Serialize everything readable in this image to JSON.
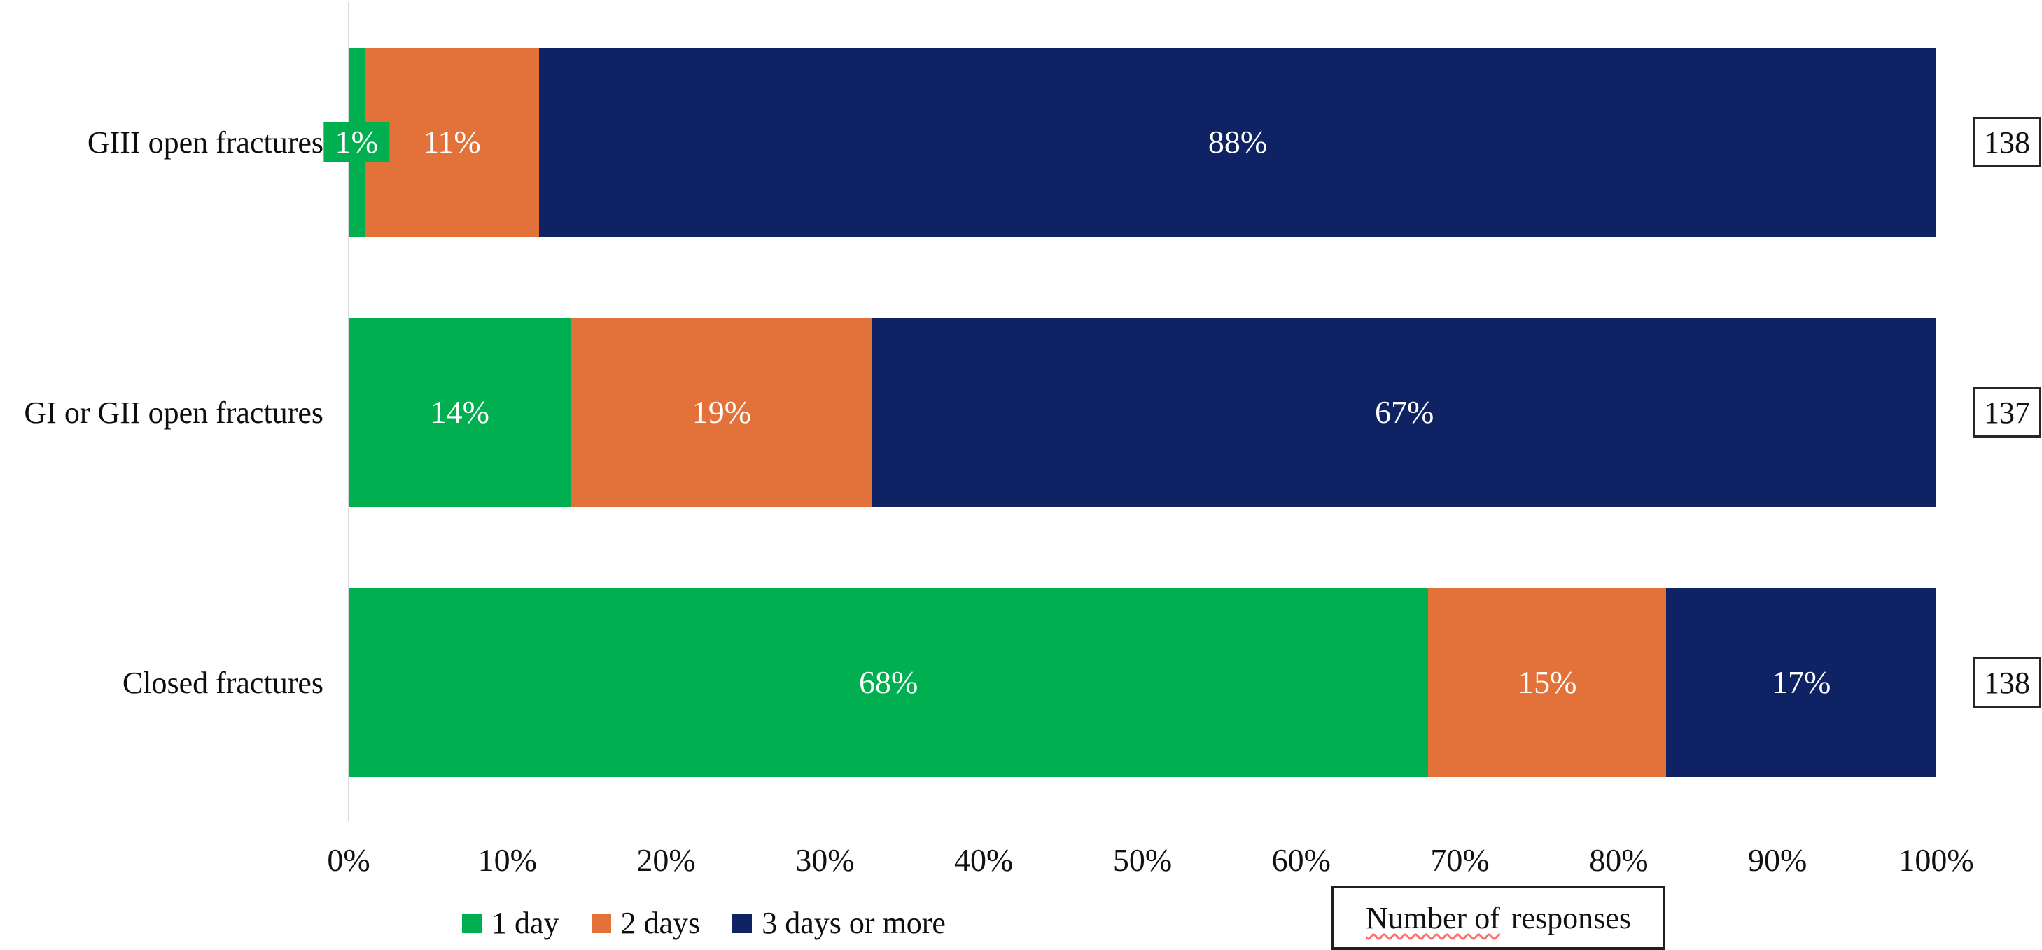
{
  "chart_data": {
    "type": "bar",
    "orientation": "horizontal",
    "stacked": true,
    "unit": "%",
    "categories": [
      "GIII open fractures",
      "GI or GII open fractures",
      "Closed fractures"
    ],
    "series": [
      {
        "name": "1 day",
        "color": "#00B050",
        "values": [
          1,
          14,
          68
        ]
      },
      {
        "name": "2 days",
        "color": "#E2713A",
        "values": [
          11,
          19,
          15
        ]
      },
      {
        "name": "3 days or more",
        "color": "#0F2364",
        "values": [
          88,
          67,
          17
        ]
      }
    ],
    "data_labels": [
      [
        "1%",
        "11%",
        "88%"
      ],
      [
        "14%",
        "19%",
        "67%"
      ],
      [
        "68%",
        "15%",
        "17%"
      ]
    ],
    "bar_totals": [
      "138",
      "137",
      "138"
    ],
    "x_ticks": [
      "0%",
      "10%",
      "20%",
      "30%",
      "40%",
      "50%",
      "60%",
      "70%",
      "80%",
      "90%",
      "100%"
    ],
    "xlim": [
      0,
      100
    ],
    "grid": false,
    "legend_position": "bottom",
    "data_label_color": "#FFFFFF",
    "axis_line_color": "#D9D9D9",
    "title": ""
  },
  "annotations": {
    "responses_box": {
      "text_underlined": "Number of",
      "text_rest": "responses"
    }
  }
}
